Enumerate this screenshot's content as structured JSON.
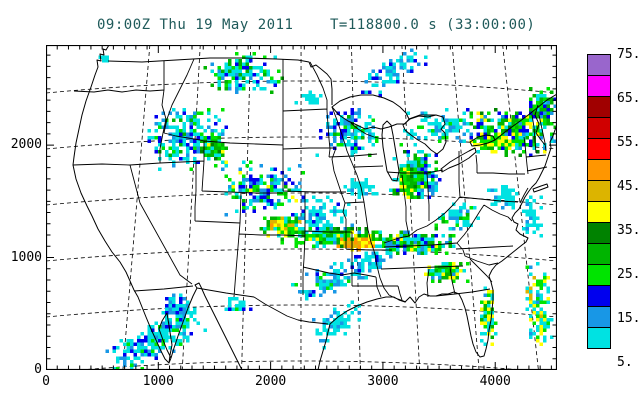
{
  "header": {
    "title_left": "09:00Z Thu 19 May 2011",
    "title_right": "T=118800.0 s (33:00:00)",
    "title_color": "#1F5A5A"
  },
  "axes": {
    "x_tick_labels": [
      "0",
      "1000",
      "2000",
      "3000",
      "4000"
    ],
    "y_tick_labels": [
      "2000",
      "1000",
      "0"
    ],
    "frame_color": "#000000"
  },
  "colorbar": {
    "labels_top_to_bottom": [
      "75.",
      "65.",
      "55.",
      "45.",
      "35.",
      "25.",
      "15.",
      "5."
    ],
    "levels_bottom_to_top": [
      5,
      10,
      15,
      20,
      25,
      30,
      35,
      40,
      45,
      50,
      55,
      60,
      65,
      70,
      75
    ],
    "colors_bottom_to_top": [
      "#00E2E2",
      "#1897E6",
      "#0000EE",
      "#00E400",
      "#00B400",
      "#008200",
      "#FFFF00",
      "#DCB400",
      "#FF9600",
      "#FF0000",
      "#D00000",
      "#A00000",
      "#FF00FF",
      "#9966CC"
    ]
  },
  "chart_data": {
    "type": "heatmap",
    "title": "09:00Z Thu 19 May 2011    T=118800.0 s (33:00:00)",
    "xlabel": "",
    "ylabel": "",
    "xlim": [
      0,
      4550
    ],
    "ylim": [
      0,
      2890
    ],
    "x_ticks": [
      0,
      1000,
      2000,
      3000,
      4000
    ],
    "y_ticks": [
      0,
      1000,
      2000
    ],
    "minor_tick_interval": 100,
    "legend_position": "right",
    "field": "simulated radar reflectivity over CONUS map",
    "levels": [
      5,
      10,
      15,
      20,
      25,
      30,
      35,
      40,
      45,
      50,
      55,
      60,
      65,
      70,
      75
    ],
    "echo_blobs": [
      {
        "name": "idaho-montana",
        "x": 1250,
        "y": 2080,
        "rx": 400,
        "ry": 355,
        "n": 220,
        "seed": 1,
        "angle": 0,
        "w": [
          [
            0,
            6
          ],
          [
            1,
            3
          ],
          [
            2,
            2
          ],
          [
            3,
            2
          ],
          [
            4,
            1
          ]
        ]
      },
      {
        "name": "n-montana-border",
        "x": 1740,
        "y": 2660,
        "rx": 360,
        "ry": 250,
        "n": 160,
        "seed": 2,
        "angle": 0,
        "w": [
          [
            0,
            5
          ],
          [
            1,
            2
          ],
          [
            2,
            2
          ],
          [
            3,
            3
          ],
          [
            4,
            2
          ]
        ]
      },
      {
        "name": "nw-wyoming-core",
        "x": 1470,
        "y": 1990,
        "rx": 130,
        "ry": 160,
        "n": 70,
        "seed": 3,
        "angle": 0,
        "w": [
          [
            3,
            4
          ],
          [
            4,
            3
          ],
          [
            5,
            1
          ],
          [
            0,
            2
          ],
          [
            6,
            1
          ]
        ]
      },
      {
        "name": "wyoming-colorado",
        "x": 1910,
        "y": 1640,
        "rx": 400,
        "ry": 310,
        "n": 200,
        "seed": 4,
        "angle": 0,
        "w": [
          [
            0,
            5
          ],
          [
            1,
            3
          ],
          [
            2,
            3
          ],
          [
            3,
            2
          ],
          [
            4,
            1
          ],
          [
            6,
            1
          ]
        ]
      },
      {
        "name": "colorado-nebraska",
        "x": 2400,
        "y": 1370,
        "rx": 360,
        "ry": 250,
        "n": 120,
        "seed": 5,
        "angle": 0,
        "w": [
          [
            0,
            6
          ],
          [
            1,
            3
          ],
          [
            2,
            2
          ]
        ]
      },
      {
        "name": "minnesota",
        "x": 2670,
        "y": 2130,
        "rx": 290,
        "ry": 270,
        "n": 140,
        "seed": 6,
        "angle": 0,
        "w": [
          [
            0,
            5
          ],
          [
            1,
            3
          ],
          [
            2,
            3
          ],
          [
            3,
            1
          ],
          [
            4,
            1
          ]
        ]
      },
      {
        "name": "michigan",
        "x": 3280,
        "y": 1750,
        "rx": 230,
        "ry": 280,
        "n": 200,
        "seed": 7,
        "angle": 0,
        "w": [
          [
            3,
            3
          ],
          [
            4,
            3
          ],
          [
            0,
            3
          ],
          [
            1,
            2
          ],
          [
            2,
            2
          ],
          [
            6,
            1
          ],
          [
            5,
            1
          ]
        ]
      },
      {
        "name": "michigan-core",
        "x": 3220,
        "y": 1680,
        "rx": 110,
        "ry": 160,
        "n": 80,
        "seed": 8,
        "angle": 0,
        "w": [
          [
            3,
            4
          ],
          [
            4,
            3
          ],
          [
            6,
            2
          ],
          [
            5,
            1
          ]
        ]
      },
      {
        "name": "lake-huron-scatter",
        "x": 3470,
        "y": 2170,
        "rx": 355,
        "ry": 220,
        "n": 90,
        "seed": 9,
        "angle": 0,
        "w": [
          [
            0,
            7
          ],
          [
            1,
            2
          ],
          [
            3,
            1
          ]
        ]
      },
      {
        "name": "newyork-newengland",
        "x": 4140,
        "y": 2130,
        "rx": 430,
        "ry": 270,
        "n": 260,
        "seed": 10,
        "angle": 0,
        "w": [
          [
            3,
            3
          ],
          [
            4,
            3
          ],
          [
            0,
            3
          ],
          [
            1,
            2
          ],
          [
            2,
            2
          ],
          [
            6,
            2
          ],
          [
            5,
            1
          ]
        ]
      },
      {
        "name": "upstate-ny-core",
        "x": 4010,
        "y": 2040,
        "rx": 220,
        "ry": 110,
        "n": 90,
        "seed": 11,
        "angle": 0,
        "w": [
          [
            3,
            4
          ],
          [
            6,
            3
          ],
          [
            4,
            2
          ]
        ]
      },
      {
        "name": "maine-dense",
        "x": 4410,
        "y": 2350,
        "rx": 140,
        "ry": 220,
        "n": 100,
        "seed": 12,
        "angle": 0,
        "w": [
          [
            3,
            3
          ],
          [
            4,
            3
          ],
          [
            2,
            2
          ],
          [
            1,
            2
          ],
          [
            0,
            2
          ]
        ]
      },
      {
        "name": "ontario-streaks",
        "x": 3070,
        "y": 2660,
        "rx": 340,
        "ry": 160,
        "n": 90,
        "seed": 13,
        "angle": -35,
        "w": [
          [
            0,
            5
          ],
          [
            1,
            3
          ],
          [
            2,
            2
          ]
        ]
      },
      {
        "name": "ohio-valley",
        "x": 3650,
        "y": 1370,
        "rx": 200,
        "ry": 160,
        "n": 70,
        "seed": 14,
        "angle": 0,
        "w": [
          [
            0,
            5
          ],
          [
            1,
            2
          ],
          [
            3,
            2
          ],
          [
            4,
            1
          ]
        ]
      },
      {
        "name": "kansas-band-west",
        "x": 2090,
        "y": 1300,
        "rx": 200,
        "ry": 110,
        "n": 110,
        "seed": 15,
        "angle": 0,
        "w": [
          [
            3,
            3
          ],
          [
            4,
            3
          ],
          [
            6,
            2
          ],
          [
            7,
            1
          ],
          [
            8,
            1
          ],
          [
            0,
            1
          ]
        ]
      },
      {
        "name": "kansas-core",
        "x": 2050,
        "y": 1310,
        "rx": 70,
        "ry": 40,
        "n": 30,
        "seed": 16,
        "angle": 0,
        "w": [
          [
            6,
            3
          ],
          [
            8,
            2
          ],
          [
            7,
            2
          ]
        ]
      },
      {
        "name": "kansas-missouri-band",
        "x": 2540,
        "y": 1200,
        "rx": 530,
        "ry": 120,
        "n": 260,
        "seed": 17,
        "angle": 0,
        "w": [
          [
            3,
            4
          ],
          [
            4,
            4
          ],
          [
            5,
            2
          ],
          [
            6,
            1
          ],
          [
            0,
            2
          ],
          [
            1,
            1
          ]
        ]
      },
      {
        "name": "missouri-core",
        "x": 2760,
        "y": 1140,
        "rx": 180,
        "ry": 80,
        "n": 90,
        "seed": 18,
        "angle": 0,
        "w": [
          [
            6,
            3
          ],
          [
            7,
            2
          ],
          [
            8,
            3
          ]
        ]
      },
      {
        "name": "missouri-inner-core",
        "x": 2720,
        "y": 1130,
        "rx": 80,
        "ry": 40,
        "n": 25,
        "seed": 19,
        "angle": 0,
        "w": [
          [
            8,
            3
          ],
          [
            7,
            2
          ]
        ]
      },
      {
        "name": "illinois-kentucky",
        "x": 3290,
        "y": 1140,
        "rx": 360,
        "ry": 140,
        "n": 200,
        "seed": 20,
        "angle": 0,
        "w": [
          [
            3,
            3
          ],
          [
            4,
            3
          ],
          [
            0,
            3
          ],
          [
            1,
            2
          ],
          [
            2,
            1
          ],
          [
            6,
            1
          ]
        ]
      },
      {
        "name": "oklahoma-arkansas-fringe",
        "x": 2670,
        "y": 890,
        "rx": 580,
        "ry": 160,
        "n": 170,
        "seed": 21,
        "angle": -25,
        "w": [
          [
            0,
            6
          ],
          [
            1,
            3
          ],
          [
            2,
            1
          ],
          [
            3,
            1
          ]
        ]
      },
      {
        "name": "tennessee-alabama",
        "x": 3560,
        "y": 890,
        "rx": 200,
        "ry": 120,
        "n": 100,
        "seed": 22,
        "angle": 0,
        "w": [
          [
            3,
            3
          ],
          [
            4,
            3
          ],
          [
            6,
            2
          ],
          [
            0,
            2
          ],
          [
            1,
            1
          ]
        ]
      },
      {
        "name": "florida-east-coast",
        "x": 3920,
        "y": 470,
        "rx": 70,
        "ry": 360,
        "n": 90,
        "seed": 23,
        "angle": 0,
        "w": [
          [
            0,
            4
          ],
          [
            3,
            2
          ],
          [
            6,
            2
          ],
          [
            1,
            1
          ],
          [
            4,
            1
          ]
        ]
      },
      {
        "name": "bahamas-atlantic",
        "x": 4380,
        "y": 580,
        "rx": 130,
        "ry": 490,
        "n": 110,
        "seed": 24,
        "angle": 0,
        "w": [
          [
            0,
            5
          ],
          [
            3,
            2
          ],
          [
            6,
            1
          ],
          [
            7,
            1
          ],
          [
            1,
            1
          ]
        ]
      },
      {
        "name": "atlantic-off-carolinas",
        "x": 4320,
        "y": 1370,
        "rx": 110,
        "ry": 270,
        "n": 45,
        "seed": 25,
        "angle": 0,
        "w": [
          [
            0,
            6
          ],
          [
            1,
            1
          ]
        ]
      },
      {
        "name": "nw-mexico-streaks",
        "x": 940,
        "y": 270,
        "rx": 490,
        "ry": 220,
        "n": 220,
        "seed": 26,
        "angle": -30,
        "w": [
          [
            0,
            8
          ],
          [
            1,
            2
          ],
          [
            2,
            1
          ],
          [
            3,
            1
          ]
        ]
      },
      {
        "name": "baja-sonora",
        "x": 1160,
        "y": 530,
        "rx": 160,
        "ry": 200,
        "n": 70,
        "seed": 27,
        "angle": 0,
        "w": [
          [
            0,
            6
          ],
          [
            1,
            2
          ],
          [
            2,
            1
          ],
          [
            3,
            1
          ]
        ]
      },
      {
        "name": "south-texas-gulf",
        "x": 2580,
        "y": 440,
        "rx": 250,
        "ry": 180,
        "n": 90,
        "seed": 28,
        "angle": -30,
        "w": [
          [
            0,
            7
          ],
          [
            1,
            2
          ]
        ]
      },
      {
        "name": "washington-coast-spot",
        "x": 510,
        "y": 2790,
        "rx": 50,
        "ry": 40,
        "n": 14,
        "seed": 29,
        "angle": 0,
        "w": [
          [
            0,
            8
          ]
        ]
      },
      {
        "name": "virginia-scatter",
        "x": 4050,
        "y": 1550,
        "rx": 160,
        "ry": 130,
        "n": 50,
        "seed": 30,
        "angle": 0,
        "w": [
          [
            0,
            6
          ],
          [
            1,
            2
          ]
        ]
      },
      {
        "name": "iowa-specks",
        "x": 2800,
        "y": 1640,
        "rx": 160,
        "ry": 110,
        "n": 40,
        "seed": 31,
        "angle": 0,
        "w": [
          [
            0,
            7
          ],
          [
            1,
            1
          ]
        ]
      },
      {
        "name": "arizona-newmexico-specks",
        "x": 1690,
        "y": 590,
        "rx": 130,
        "ry": 90,
        "n": 25,
        "seed": 32,
        "angle": 0,
        "w": [
          [
            0,
            6
          ],
          [
            2,
            1
          ],
          [
            3,
            1
          ]
        ]
      },
      {
        "name": "north-dakota-specks",
        "x": 2330,
        "y": 2440,
        "rx": 110,
        "ry": 70,
        "n": 20,
        "seed": 33,
        "angle": 0,
        "w": [
          [
            0,
            8
          ]
        ]
      }
    ]
  }
}
